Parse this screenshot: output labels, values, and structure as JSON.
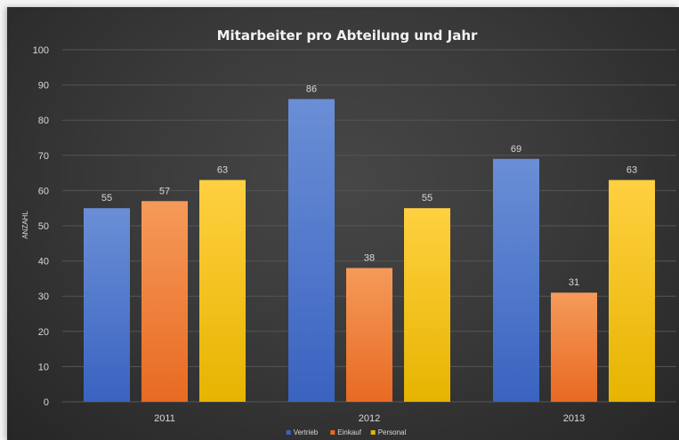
{
  "chart_data": {
    "type": "bar",
    "title": "Mitarbeiter pro Abteilung und Jahr",
    "xlabel": "",
    "ylabel": "ANZAHL",
    "categories": [
      "2011",
      "2012",
      "2013"
    ],
    "series": [
      {
        "name": "Vertrieb",
        "values": [
          55,
          86,
          69
        ],
        "color_top": "#6a8fd6",
        "color_bottom": "#3a63c0"
      },
      {
        "name": "Einkauf",
        "values": [
          57,
          38,
          31
        ],
        "color_top": "#f59a5a",
        "color_bottom": "#e86a22"
      },
      {
        "name": "Personal",
        "values": [
          63,
          55,
          63
        ],
        "color_top": "#ffd040",
        "color_bottom": "#e6b400"
      }
    ],
    "ylim": [
      0,
      100
    ],
    "yticks": [
      0,
      10,
      20,
      30,
      40,
      50,
      60,
      70,
      80,
      90,
      100
    ],
    "grid": true,
    "legend_position": "bottom",
    "data_labels": true,
    "colors": {
      "background": "#3a3a3a",
      "gridline": "#555555",
      "text": "#d9d9d9"
    }
  }
}
